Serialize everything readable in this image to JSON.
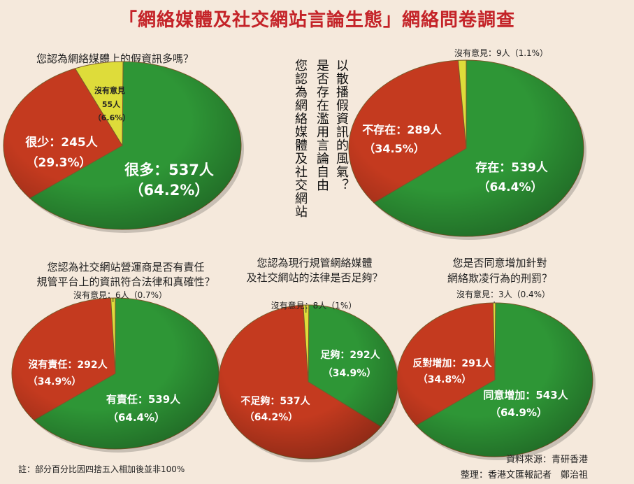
{
  "title": "「網絡媒體及社交網站言論生態」網絡問卷調查",
  "footnote": "註：部分百分比因四捨五入相加後並非100%",
  "credits": {
    "source": "資料來源：青研香港",
    "reporter": "整理：香港文匯報記者　鄭治祖"
  },
  "colors": {
    "green": "#2e9636",
    "red": "#c43a1f",
    "yellow": "#dedc3a"
  },
  "chart_data": [
    {
      "type": "pie",
      "question": "您認為網絡媒體上的假資訊多嗎？",
      "slices": [
        {
          "label": "很多：537人",
          "pct": "（64.2%）",
          "value": 537,
          "percent": 64.2,
          "color": "green"
        },
        {
          "label": "很少：245人",
          "pct": "（29.3%）",
          "value": 245,
          "percent": 29.3,
          "color": "red"
        },
        {
          "label": "沒有意見",
          "label2": "55人",
          "pct": "（6.6%）",
          "value": 55,
          "percent": 6.6,
          "color": "yellow"
        }
      ]
    },
    {
      "type": "pie",
      "question": "以散播假資訊的風氣，是否存在濫用言論自由，您認為網絡媒體及社交網站",
      "question_lines": [
        "以散播假資訊的風氣？",
        "是否存在濫用言論自由",
        "您認為網絡媒體及社交網站"
      ],
      "slices": [
        {
          "label": "存在：539人",
          "pct": "（64.4%）",
          "value": 539,
          "percent": 64.4,
          "color": "green"
        },
        {
          "label": "不存在：289人",
          "pct": "（34.5%）",
          "value": 289,
          "percent": 34.5,
          "color": "red"
        },
        {
          "label": "沒有意見：9人（1.1%）",
          "value": 9,
          "percent": 1.1,
          "color": "yellow"
        }
      ]
    },
    {
      "type": "pie",
      "question_lines": [
        "您認為社交網站營運商是否有責任",
        "規管平台上的資訊符合法律和真確性？"
      ],
      "slices": [
        {
          "label": "有責任：539人",
          "pct": "（64.4%）",
          "value": 539,
          "percent": 64.4,
          "color": "green"
        },
        {
          "label": "沒有責任：292人",
          "pct": "（34.9%）",
          "value": 292,
          "percent": 34.9,
          "color": "red"
        },
        {
          "label": "沒有意見：6人（0.7%）",
          "value": 6,
          "percent": 0.7,
          "color": "yellow"
        }
      ]
    },
    {
      "type": "pie",
      "question_lines": [
        "您認為現行規管網絡媒體",
        "及社交網站的法律是否足夠？"
      ],
      "slices": [
        {
          "label": "足夠：292人",
          "pct": "（34.9%）",
          "value": 292,
          "percent": 34.9,
          "color": "green"
        },
        {
          "label": "不足夠：537人",
          "pct": "（64.2%）",
          "value": 537,
          "percent": 64.2,
          "color": "red"
        },
        {
          "label": "沒有意見：8人（1%）",
          "value": 8,
          "percent": 1.0,
          "color": "yellow"
        }
      ]
    },
    {
      "type": "pie",
      "question_lines": [
        "您是否同意增加針對",
        "網絡欺凌行為的刑罰？"
      ],
      "slices": [
        {
          "label": "同意增加：543人",
          "pct": "（64.9%）",
          "value": 543,
          "percent": 64.9,
          "color": "green"
        },
        {
          "label": "反對增加：291人",
          "pct": "（34.8%）",
          "value": 291,
          "percent": 34.8,
          "color": "red"
        },
        {
          "label": "沒有意見：3人（0.4%）",
          "value": 3,
          "percent": 0.4,
          "color": "yellow"
        }
      ]
    }
  ]
}
